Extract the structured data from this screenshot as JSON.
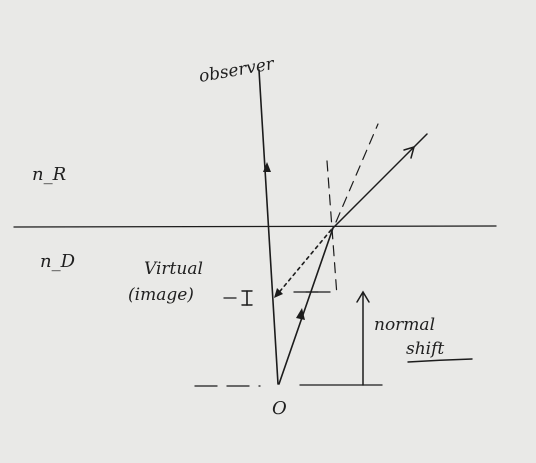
{
  "labels": {
    "observer": "observer",
    "medium_rarer": "n_R",
    "medium_denser": "n_D",
    "virtual_line1": "Virtual",
    "virtual_line2": "(image)",
    "image_point": "I",
    "object_point": "O",
    "normal_line1": "normal",
    "normal_line2": "shift"
  },
  "colors": {
    "paper": "#e9e9e7",
    "ink": "#1c1c1c"
  }
}
